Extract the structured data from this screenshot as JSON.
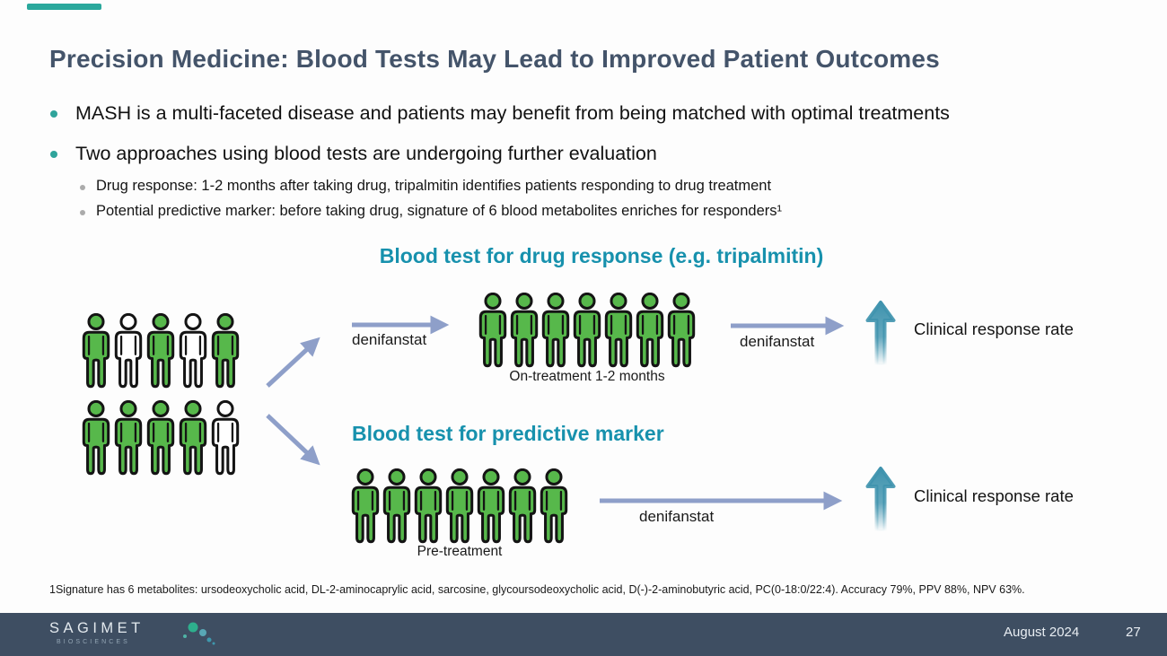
{
  "colors": {
    "title_text": "#44546a",
    "teal_heading": "#1791ad",
    "bullet_dot": "#2fa49b",
    "sub_bullet_dot": "#ababab",
    "person_green": "#57b84b",
    "person_white": "#ffffff",
    "flow_arrow": "#8e9fc9",
    "up_arrow_teal": "#3f93ae",
    "footer_background": "#3e4e62",
    "accent_bar": "#2aa89c"
  },
  "header": {
    "title": "Precision Medicine: Blood Tests May Lead to Improved Patient Outcomes"
  },
  "bullets": [
    {
      "text": "MASH is a multi-faceted disease and patients may benefit from being matched with optimal treatments"
    },
    {
      "text": "Two approaches using blood tests are undergoing further evaluation"
    }
  ],
  "sub_bullets": [
    {
      "text": "Drug response: 1-2 months after taking drug, tripalmitin identifies patients responding to drug treatment"
    },
    {
      "text": "Potential predictive marker: before taking drug, signature of 6 blood metabolites enriches for responders¹"
    }
  ],
  "diagram": {
    "top_heading": "Blood test for drug response (e.g. tripalmitin)",
    "bottom_heading": "Blood test for predictive marker",
    "left_group": {
      "rows": [
        [
          "green",
          "white",
          "green",
          "white",
          "green"
        ],
        [
          "green",
          "green",
          "green",
          "green",
          "white"
        ]
      ]
    },
    "top_flow": {
      "arrow1_label": "denifanstat",
      "group": [
        "green",
        "green",
        "green",
        "green",
        "green",
        "green",
        "green"
      ],
      "group_caption": "On-treatment 1-2 months",
      "arrow2_label": "denifanstat",
      "outcome": "Clinical response rate"
    },
    "bottom_flow": {
      "group": [
        "green",
        "green",
        "green",
        "green",
        "green",
        "green",
        "green"
      ],
      "group_caption": "Pre-treatment",
      "arrow_label": "denifanstat",
      "outcome": "Clinical response rate"
    }
  },
  "footnote": "1Signature has 6 metabolites: ursodeoxycholic acid, DL-2-aminocaprylic acid, sarcosine, glycoursodeoxycholic acid, D(-)-2-aminobutyric acid, PC(0-18:0/22:4). Accuracy 79%, PPV 88%, NPV 63%.",
  "footer": {
    "logo_text": "SAGIMET",
    "logo_subtext": "BIOSCIENCES",
    "date": "August 2024",
    "page_number": "27"
  }
}
